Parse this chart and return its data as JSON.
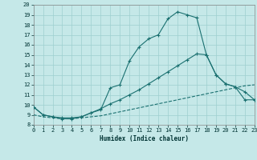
{
  "xlabel": "Humidex (Indice chaleur)",
  "xlim": [
    0,
    23
  ],
  "ylim": [
    8,
    20
  ],
  "xticks": [
    0,
    1,
    2,
    3,
    4,
    5,
    6,
    7,
    8,
    9,
    10,
    11,
    12,
    13,
    14,
    15,
    16,
    17,
    18,
    19,
    20,
    21,
    22,
    23
  ],
  "yticks": [
    8,
    9,
    10,
    11,
    12,
    13,
    14,
    15,
    16,
    17,
    18,
    19,
    20
  ],
  "bg_color": "#c5e8e8",
  "grid_color": "#9ecfcf",
  "line_color": "#1a7070",
  "curve1_x": [
    0,
    1,
    2,
    3,
    4,
    5,
    6,
    7,
    8,
    9,
    10,
    11,
    12,
    13,
    14,
    15,
    16,
    17,
    18,
    19,
    20,
    21,
    22,
    23
  ],
  "curve1_y": [
    9.8,
    9.0,
    8.8,
    8.6,
    8.6,
    8.8,
    9.2,
    9.5,
    11.7,
    12.0,
    14.4,
    15.8,
    16.6,
    17.0,
    18.6,
    19.3,
    19.0,
    18.7,
    15.0,
    13.0,
    12.1,
    11.8,
    10.5,
    10.5
  ],
  "curve2_x": [
    0,
    1,
    2,
    3,
    4,
    5,
    6,
    7,
    8,
    9,
    10,
    11,
    12,
    13,
    14,
    15,
    16,
    17,
    18,
    19,
    20,
    21,
    22,
    23
  ],
  "curve2_y": [
    9.8,
    9.0,
    8.8,
    8.7,
    8.7,
    8.8,
    9.2,
    9.6,
    10.1,
    10.5,
    11.0,
    11.5,
    12.1,
    12.7,
    13.3,
    13.9,
    14.5,
    15.1,
    15.0,
    13.0,
    12.1,
    11.8,
    11.3,
    10.5
  ],
  "curve3_x": [
    0,
    1,
    2,
    3,
    4,
    5,
    6,
    7,
    8,
    9,
    10,
    11,
    12,
    13,
    14,
    15,
    16,
    17,
    18,
    19,
    20,
    21,
    22,
    23
  ],
  "curve3_y": [
    9.0,
    8.8,
    8.7,
    8.6,
    8.6,
    8.7,
    8.8,
    8.9,
    9.1,
    9.3,
    9.5,
    9.7,
    9.9,
    10.1,
    10.3,
    10.5,
    10.7,
    10.9,
    11.1,
    11.3,
    11.5,
    11.7,
    11.9,
    12.0
  ]
}
